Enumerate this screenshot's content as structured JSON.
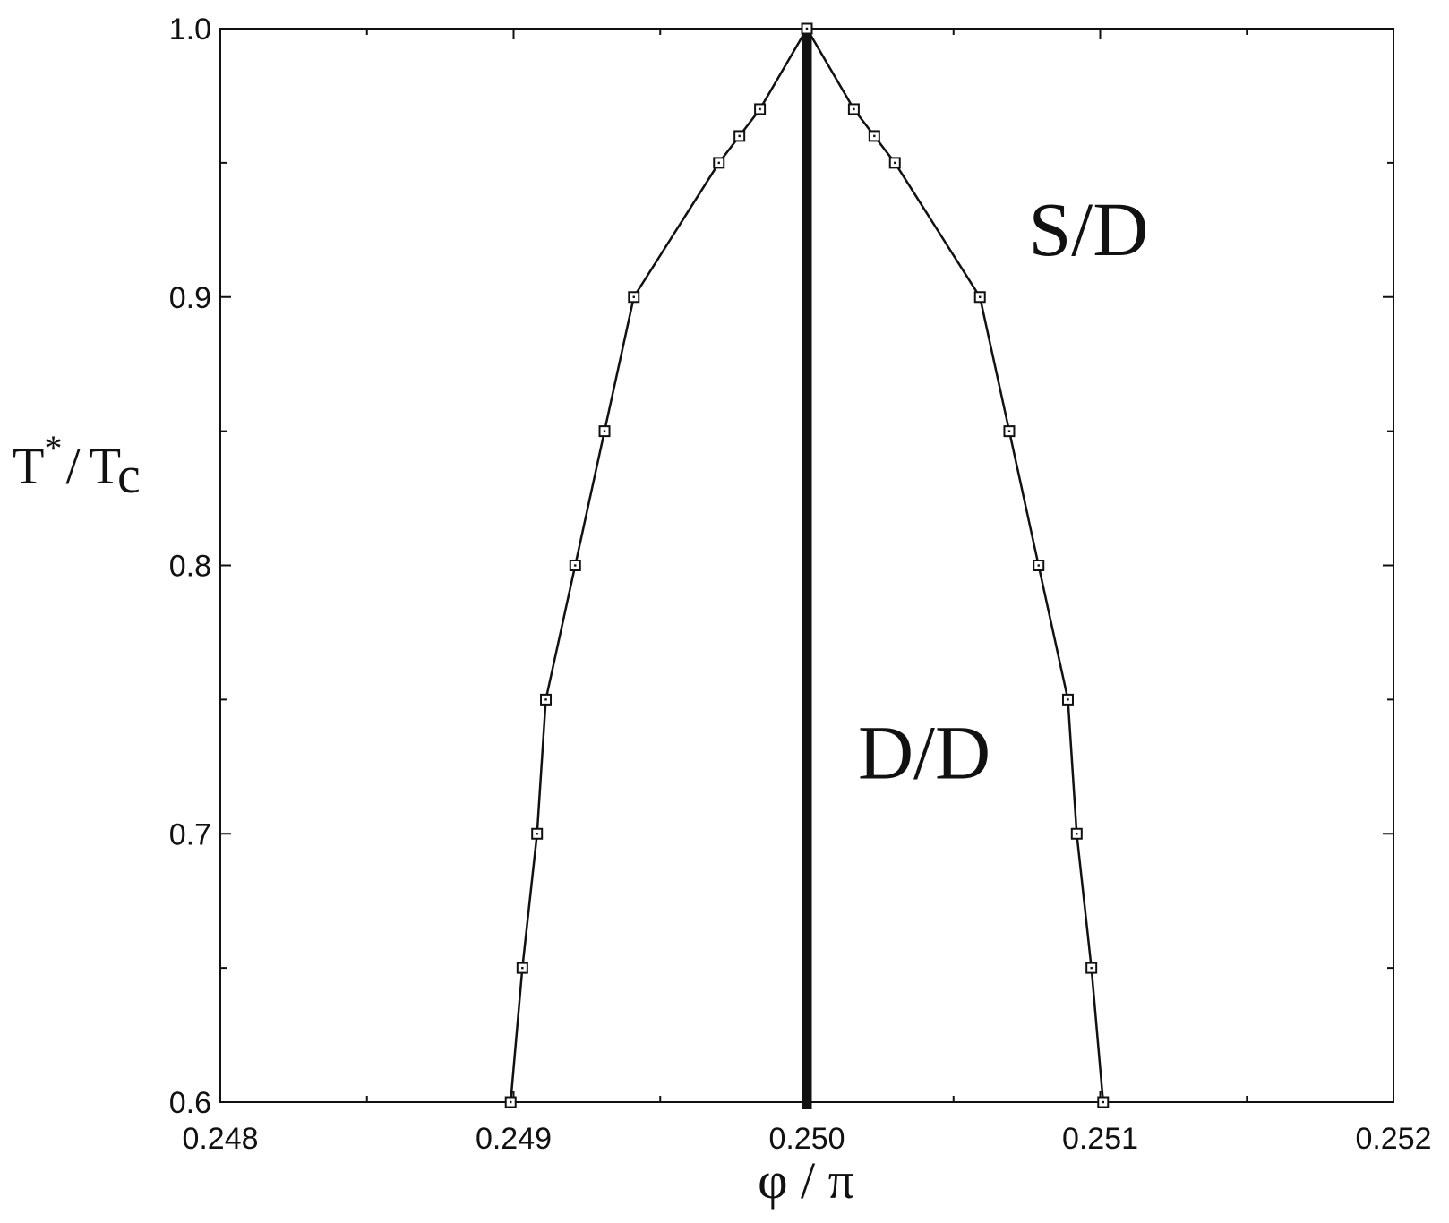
{
  "chart_data": {
    "type": "line",
    "xlabel": "φ / π",
    "ylabel": {
      "main": "T",
      "superscript": "*",
      "slash": "/",
      "sub_main": "T",
      "subscript": "c"
    },
    "xlim": [
      0.248,
      0.252
    ],
    "ylim": [
      0.6,
      1.0
    ],
    "x_ticks": [
      0.248,
      0.249,
      0.25,
      0.251,
      0.252
    ],
    "x_tick_labels": [
      "0.248",
      "0.249",
      "0.250",
      "0.251",
      "0.252"
    ],
    "y_ticks": [
      0.6,
      0.7,
      0.8,
      0.9,
      1.0
    ],
    "y_tick_labels": [
      "0.6",
      "0.7",
      "0.8",
      "0.9",
      "1.0"
    ],
    "grid": false,
    "series": [
      {
        "marker": "square",
        "points": [
          [
            0.24899,
            0.6
          ],
          [
            0.24903,
            0.65
          ],
          [
            0.24908,
            0.7
          ],
          [
            0.24911,
            0.75
          ],
          [
            0.24921,
            0.8
          ],
          [
            0.24931,
            0.85
          ],
          [
            0.24941,
            0.9
          ],
          [
            0.2497,
            0.95
          ],
          [
            0.24977,
            0.96
          ],
          [
            0.24984,
            0.97
          ],
          [
            0.25,
            1.0
          ]
        ]
      },
      {
        "marker": "square",
        "points": [
          [
            0.25,
            1.0
          ],
          [
            0.25016,
            0.97
          ],
          [
            0.25023,
            0.96
          ],
          [
            0.2503,
            0.95
          ],
          [
            0.25059,
            0.9
          ],
          [
            0.25069,
            0.85
          ],
          [
            0.25079,
            0.8
          ],
          [
            0.25089,
            0.75
          ],
          [
            0.25092,
            0.7
          ],
          [
            0.25097,
            0.65
          ],
          [
            0.25101,
            0.6
          ]
        ]
      }
    ],
    "vertical_line": {
      "x": 0.25,
      "style": "thick"
    },
    "annotations": [
      {
        "text": "S/D",
        "x": 0.25096,
        "y": 0.925
      },
      {
        "text": "D/D",
        "x": 0.2504,
        "y": 0.73
      }
    ],
    "colors": {
      "line": "#111111",
      "marker_fill": "#ffffff"
    }
  }
}
